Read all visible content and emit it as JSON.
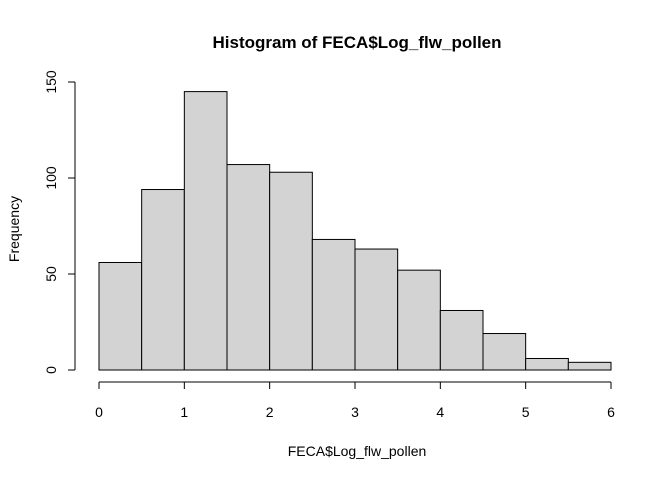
{
  "chart_data": {
    "type": "bar",
    "title": "Histogram of FECA$Log_flw_pollen",
    "xlabel": "FECA$Log_flw_pollen",
    "ylabel": "Frequency",
    "bins": [
      {
        "x0": 0.0,
        "x1": 0.5,
        "count": 56
      },
      {
        "x0": 0.5,
        "x1": 1.0,
        "count": 94
      },
      {
        "x0": 1.0,
        "x1": 1.5,
        "count": 145
      },
      {
        "x0": 1.5,
        "x1": 2.0,
        "count": 107
      },
      {
        "x0": 2.0,
        "x1": 2.5,
        "count": 103
      },
      {
        "x0": 2.5,
        "x1": 3.0,
        "count": 68
      },
      {
        "x0": 3.0,
        "x1": 3.5,
        "count": 63
      },
      {
        "x0": 3.5,
        "x1": 4.0,
        "count": 52
      },
      {
        "x0": 4.0,
        "x1": 4.5,
        "count": 31
      },
      {
        "x0": 4.5,
        "x1": 5.0,
        "count": 19
      },
      {
        "x0": 5.0,
        "x1": 5.5,
        "count": 6
      },
      {
        "x0": 5.5,
        "x1": 6.0,
        "count": 4
      }
    ],
    "xlim": [
      0,
      6
    ],
    "ylim": [
      0,
      150
    ],
    "xticks": [
      0,
      1,
      2,
      3,
      4,
      5,
      6
    ],
    "yticks": [
      0,
      50,
      100,
      150
    ],
    "bar_color": "#d3d3d3",
    "grid": false
  }
}
